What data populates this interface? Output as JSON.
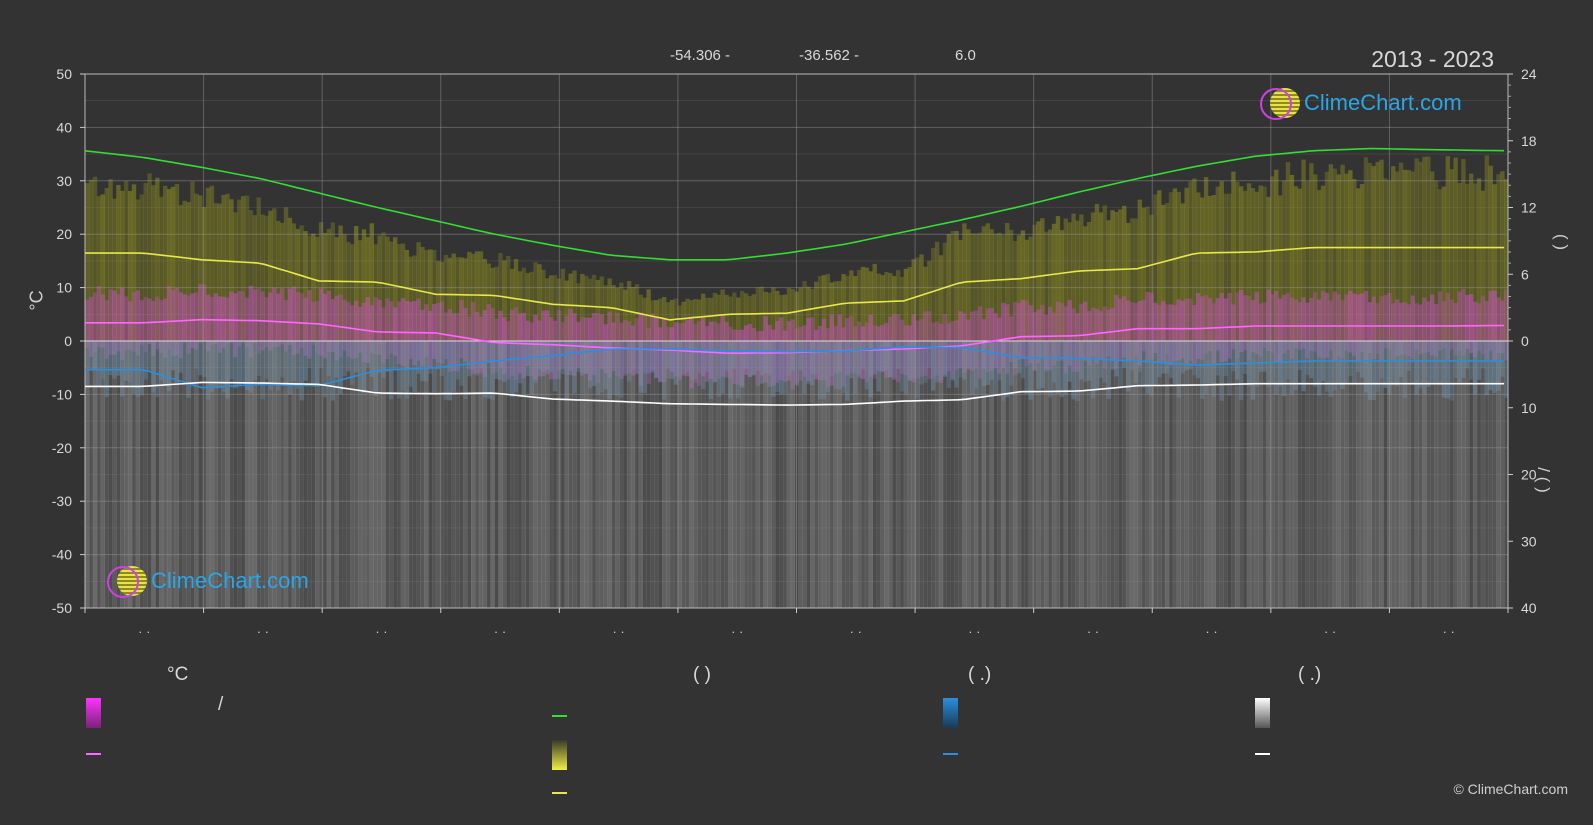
{
  "header": {
    "latitude": "-54.306 -",
    "longitude": "-36.562 -",
    "elevation": "6.0",
    "period": "2013 - 2023"
  },
  "axes": {
    "left_unit": "°C",
    "right_top_label": "(  )",
    "right_bottom_label": "/  (  )"
  },
  "legend": {
    "temperature_title": "°C",
    "sun_title": "(          )",
    "rain_title": "(   .)",
    "snow_title": "(   .)",
    "slash": "/"
  },
  "branding": {
    "logo_text": "ClimeChart.com",
    "copyright": "© ClimeChart.com"
  },
  "colors": {
    "background": "#333333",
    "daylight": "#33dd33",
    "sunshine": "#e8e84a",
    "temperature": "#ff66ff",
    "rain": "#2a8fe0",
    "snow": "#ffffff",
    "temp_band": "#d64fd6",
    "sun_band": "#8b8b20",
    "rain_band": "#5a8fb8",
    "snow_band": "#8f8f8f",
    "logo_text": "#2aa6e6"
  },
  "chart_data": {
    "type": "line",
    "x_labels": [
      "",
      "",
      "",
      "",
      "",
      "",
      "",
      "",
      "",
      "",
      "",
      ""
    ],
    "left_axis": {
      "unit": "°C",
      "ylim": [
        -50,
        50
      ],
      "ticks": [
        50,
        40,
        30,
        20,
        10,
        0,
        -10,
        -20,
        -30,
        -40,
        -50
      ]
    },
    "right_axis_top": {
      "ylim": [
        0,
        24
      ],
      "ticks": [
        24,
        18,
        12,
        6,
        0
      ]
    },
    "right_axis_bottom": {
      "ylim": [
        0,
        40
      ],
      "ticks": [
        0,
        10,
        20,
        30,
        40
      ],
      "inverted": true
    },
    "grid": true,
    "legend_position": "bottom",
    "x_days": [
      0,
      15,
      30,
      45,
      60,
      75,
      90,
      105,
      120,
      135,
      150,
      165,
      180,
      195,
      210,
      225,
      240,
      255,
      270,
      285,
      300,
      315,
      330,
      345,
      365
    ],
    "series": [
      {
        "key": "daylight",
        "axis": "right_top",
        "style": "line",
        "values": [
          17.1,
          16.5,
          15.6,
          14.6,
          13.3,
          12.0,
          10.8,
          9.6,
          8.6,
          7.7,
          7.3,
          7.3,
          7.9,
          8.7,
          9.8,
          10.9,
          12.1,
          13.4,
          14.6,
          15.7,
          16.6,
          17.1,
          17.3,
          17.2,
          17.1
        ]
      },
      {
        "key": "sunshine",
        "axis": "right_top",
        "style": "line",
        "values": [
          7.9,
          7.9,
          7.3,
          7.0,
          5.4,
          5.3,
          4.2,
          4.1,
          3.3,
          3.0,
          1.9,
          2.4,
          2.5,
          3.4,
          3.6,
          5.3,
          5.6,
          6.3,
          6.5,
          7.9,
          8.0,
          8.4,
          8.4,
          8.4,
          8.4
        ]
      },
      {
        "key": "temperature_mean",
        "axis": "left",
        "style": "line",
        "values": [
          3.4,
          3.4,
          4.0,
          3.8,
          3.2,
          1.7,
          1.5,
          -0.3,
          -0.7,
          -1.3,
          -1.7,
          -2.3,
          -2.2,
          -1.8,
          -1.5,
          -0.9,
          0.8,
          1.0,
          2.3,
          2.3,
          2.8,
          2.8,
          2.8,
          2.8,
          2.9
        ]
      },
      {
        "key": "rain_mean",
        "axis": "right_bottom",
        "style": "line",
        "values": [
          4.3,
          4.3,
          7.0,
          6.5,
          6.7,
          4.4,
          4.0,
          3.0,
          2.2,
          1.2,
          1.2,
          1.5,
          1.6,
          1.5,
          0.9,
          1.0,
          2.5,
          2.6,
          3.0,
          3.6,
          3.3,
          3.0,
          3.0,
          3.0,
          3.0
        ]
      },
      {
        "key": "snow_mean",
        "axis": "right_bottom",
        "style": "line",
        "values": [
          6.8,
          6.8,
          6.2,
          6.3,
          6.5,
          7.8,
          7.9,
          7.8,
          8.7,
          9.0,
          9.4,
          9.5,
          9.6,
          9.5,
          9.0,
          8.8,
          7.6,
          7.5,
          6.7,
          6.6,
          6.4,
          6.4,
          6.4,
          6.4,
          6.4
        ]
      }
    ]
  }
}
